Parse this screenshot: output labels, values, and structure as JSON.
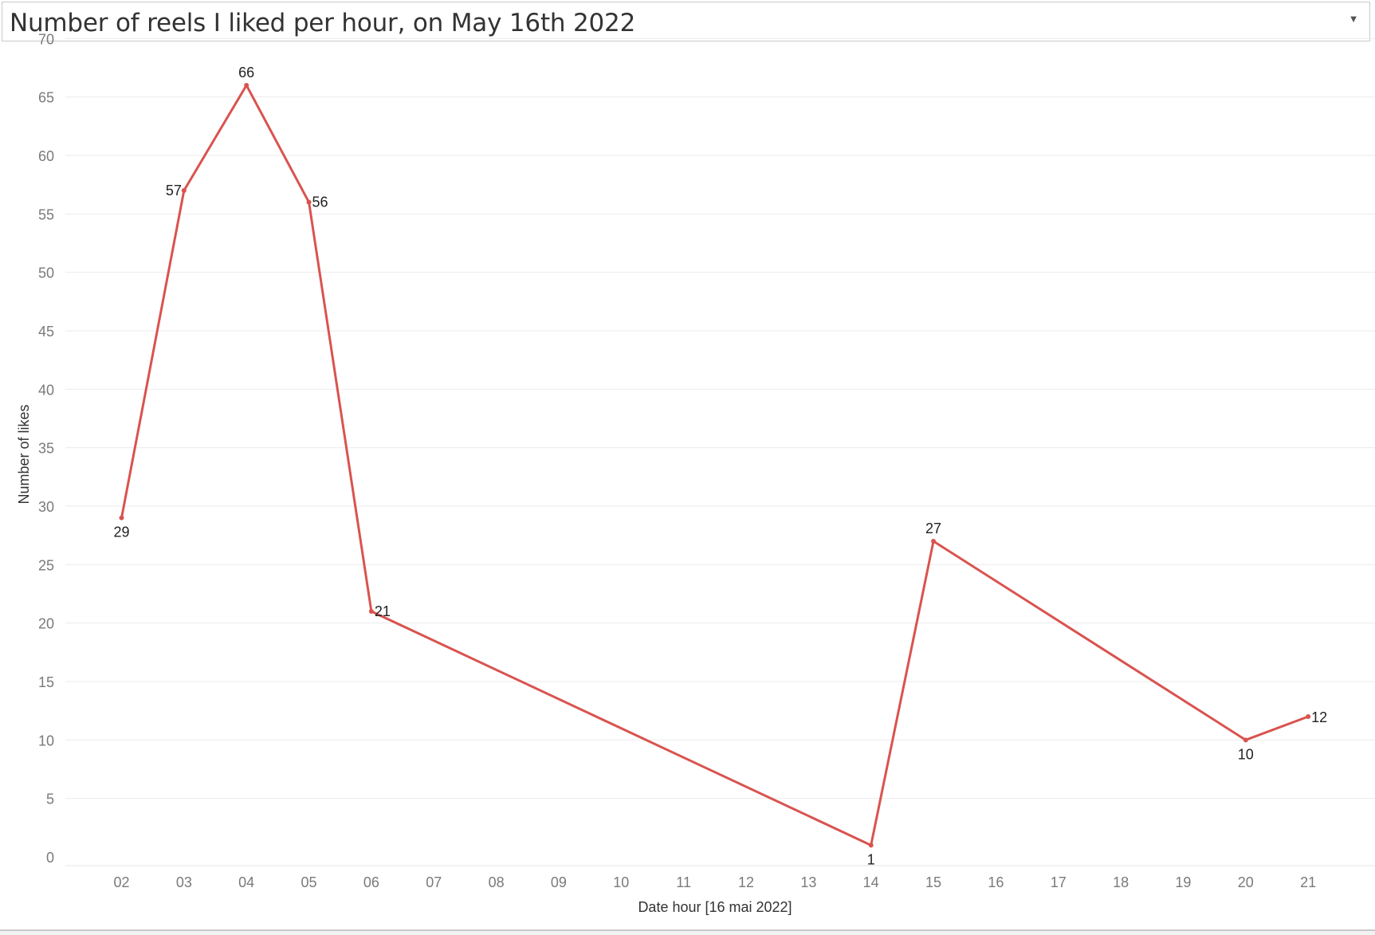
{
  "header": {
    "title": "Number of reels I liked per hour, on May 16th 2022",
    "dropdown_icon": "chevron-down-icon"
  },
  "colors": {
    "line": "#d9534f",
    "grid": "#ebebeb",
    "axis_text": "#7a7a7a",
    "label_text": "#222222"
  },
  "chart_data": {
    "type": "line",
    "title": "Number of reels I liked per hour, on May 16th 2022",
    "xlabel": "Date hour [16 mai 2022]",
    "ylabel": "Number of likes",
    "ylim": [
      0,
      70
    ],
    "yticks": [
      0,
      5,
      10,
      15,
      20,
      25,
      30,
      35,
      40,
      45,
      50,
      55,
      60,
      65,
      70
    ],
    "xticks": [
      "02",
      "03",
      "04",
      "05",
      "06",
      "07",
      "08",
      "09",
      "10",
      "11",
      "12",
      "13",
      "14",
      "15",
      "16",
      "17",
      "18",
      "19",
      "20",
      "21"
    ],
    "grid": true,
    "series": [
      {
        "x": [
          "02",
          "03",
          "04",
          "05",
          "06",
          "14",
          "15",
          "20",
          "21"
        ],
        "y": [
          29,
          57,
          66,
          56,
          21,
          1,
          27,
          10,
          12
        ]
      }
    ]
  }
}
